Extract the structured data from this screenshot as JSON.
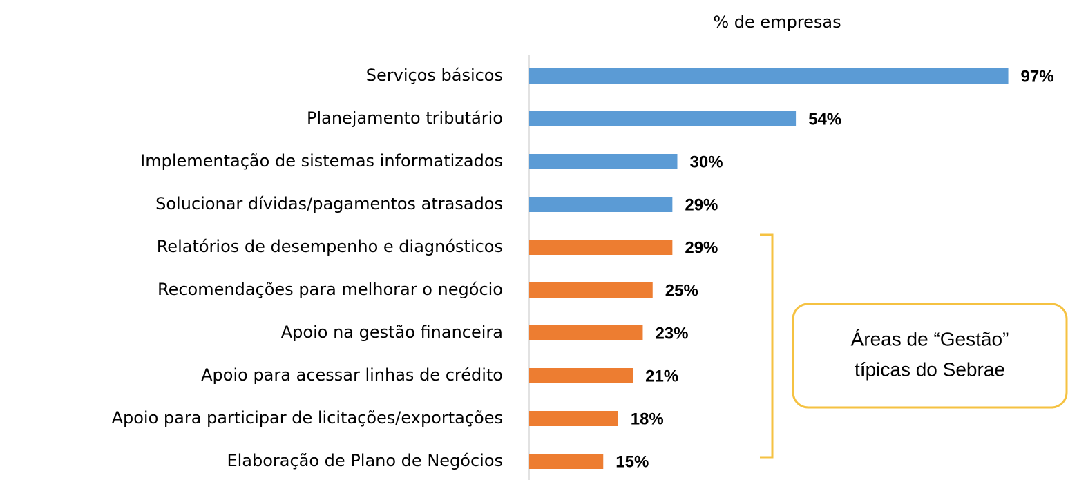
{
  "chart_data": {
    "type": "bar",
    "orientation": "horizontal",
    "x_label": "% de empresas",
    "categories": [
      "Serviços básicos",
      "Planejamento tributário",
      "Implementação de sistemas informatizados",
      "Solucionar dívidas/pagamentos atrasados",
      "Relatórios de desempenho e diagnósticos",
      "Recomendações para melhorar o negócio",
      "Apoio na gestão financeira",
      "Apoio para acessar linhas de crédito",
      "Apoio para participar de licitações/exportações",
      "Elaboração de Plano de Negócios"
    ],
    "values": [
      97,
      54,
      30,
      29,
      29,
      25,
      23,
      21,
      18,
      15
    ],
    "value_labels": [
      "97%",
      "54%",
      "30%",
      "29%",
      "29%",
      "25%",
      "23%",
      "21%",
      "18%",
      "15%"
    ],
    "colors": [
      "#5b9bd5",
      "#5b9bd5",
      "#5b9bd5",
      "#5b9bd5",
      "#ed7d31",
      "#ed7d31",
      "#ed7d31",
      "#ed7d31",
      "#ed7d31",
      "#ed7d31"
    ],
    "xlim": [
      0,
      100
    ],
    "annotation": [
      "Áreas de “Gestão”",
      "típicas do Sebrae"
    ]
  }
}
